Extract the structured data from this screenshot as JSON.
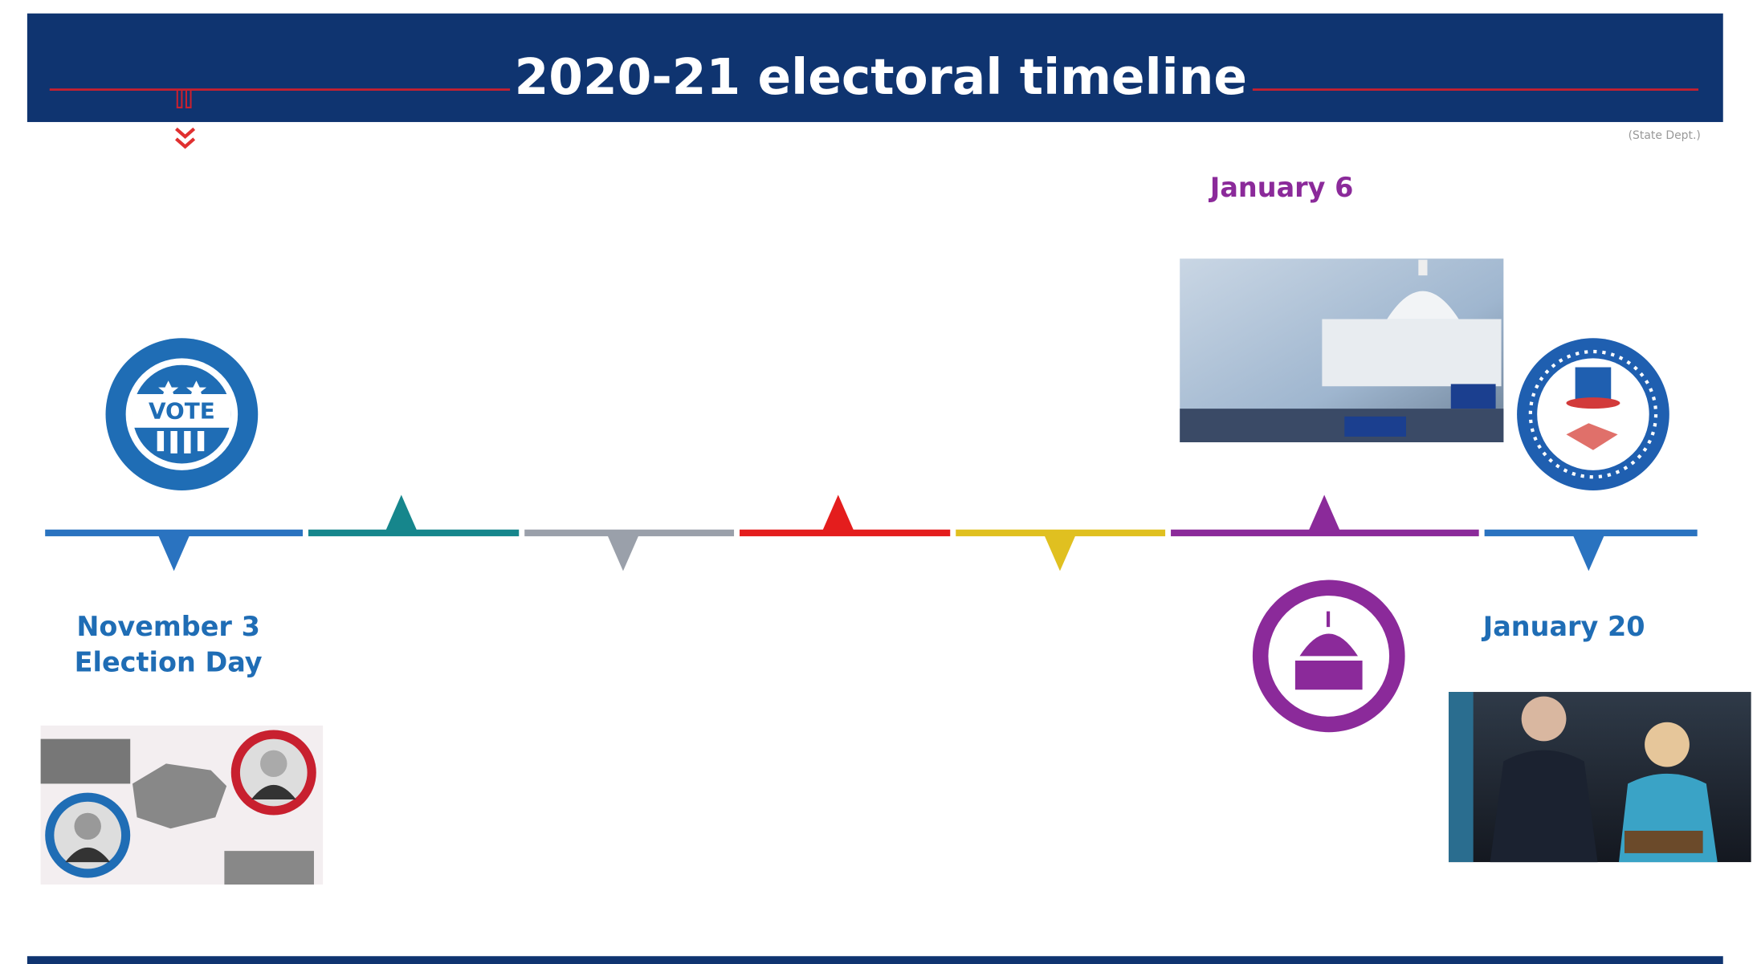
{
  "header": {
    "title": "2020-21 electoral timeline",
    "source": "(State Dept.)"
  },
  "events": [
    {
      "date": "November 3",
      "label": "Election Day",
      "icon_text": "VOTE"
    },
    {
      "date": "January 6"
    },
    {
      "date": "January 20"
    }
  ]
}
